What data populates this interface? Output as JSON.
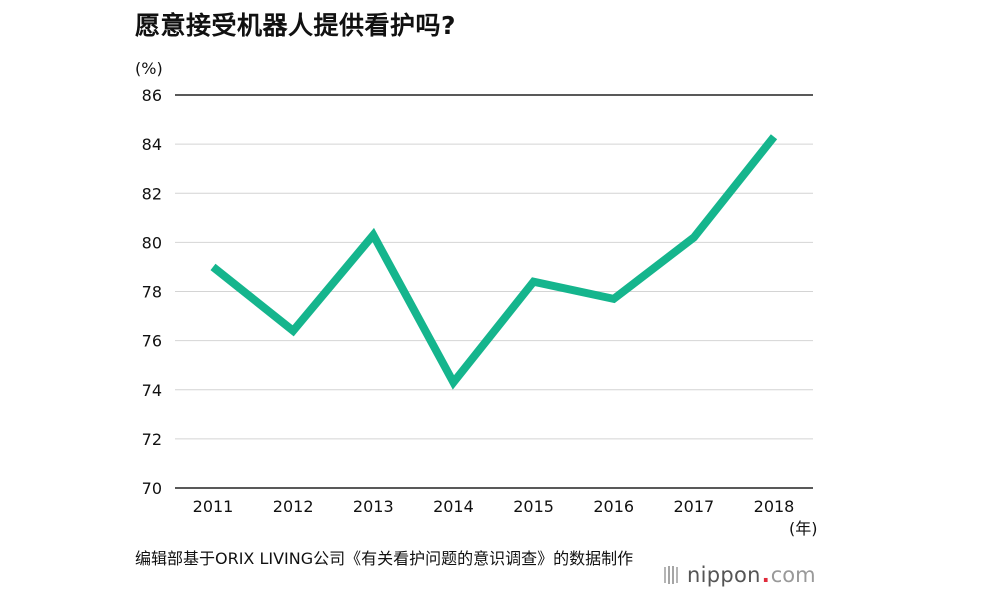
{
  "colors": {
    "line": "#15b58d",
    "grid": "#d4d4d4",
    "baseline": "#222222",
    "logo_dot": "#e02b3b"
  },
  "logo": {
    "name": "nippon",
    "dot": ".",
    "tld": "com"
  },
  "source_text": "编辑部基于ORIX LIVING公司《有关看护问题的意识调查》的数据制作",
  "chart_data": {
    "type": "line",
    "title": "愿意接受机器人提供看护吗?",
    "ylabel": "(%)",
    "xlabel": "(年)",
    "ylim": [
      70,
      86
    ],
    "yticks": [
      70,
      72,
      74,
      76,
      78,
      80,
      82,
      84,
      86
    ],
    "categories": [
      "2011",
      "2012",
      "2013",
      "2014",
      "2015",
      "2016",
      "2017",
      "2018"
    ],
    "series": [
      {
        "name": "愿意接受机器人提供看护",
        "values": [
          79.0,
          76.4,
          80.3,
          74.3,
          78.4,
          77.7,
          80.2,
          84.3
        ]
      }
    ],
    "grid": true
  }
}
